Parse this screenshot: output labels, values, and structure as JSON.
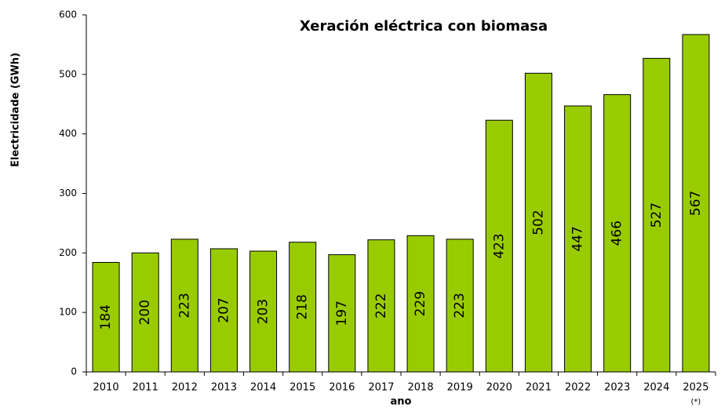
{
  "chart_data": {
    "type": "bar",
    "title": "Xeración eléctrica con biomasa",
    "x_label": "ano",
    "y_label": "Electricidade (GWh)",
    "categories": [
      "2010",
      "2011",
      "2012",
      "2013",
      "2014",
      "2015",
      "2016",
      "2017",
      "2018",
      "2019",
      "2020",
      "2021",
      "2022",
      "2023",
      "2024",
      "2025"
    ],
    "values": [
      184,
      200,
      223,
      207,
      203,
      218,
      197,
      222,
      229,
      223,
      423,
      502,
      447,
      466,
      527,
      567
    ],
    "annotations": [
      {
        "category": 15,
        "text": "(*)"
      }
    ],
    "color": "#99cc00",
    "ylim": [
      0,
      600
    ],
    "yticks": [
      0,
      100,
      200,
      300,
      400,
      500,
      600
    ],
    "grid": false
  }
}
